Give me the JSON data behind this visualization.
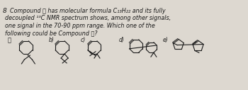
{
  "background_color": "#ddd8d0",
  "text_color": "#1a1a1a",
  "struct_color": "#1a1a1a",
  "figsize": [
    3.5,
    1.27
  ],
  "dpi": 100,
  "text_lines": [
    [
      "8",
      3,
      117,
      6.5
    ],
    [
      "Compound ⒦ has molecular formula C₁₃H₂₂ and its fully",
      13,
      117,
      5.8
    ],
    [
      "decoupled ¹³C NMR spectrum shows, among other signals,",
      6,
      106,
      5.8
    ],
    [
      "one signal in the 70-90 ppm range. Which one of the",
      6,
      95,
      5.8
    ],
    [
      "following could be Compound ⒦?",
      6,
      84,
      5.8
    ]
  ]
}
